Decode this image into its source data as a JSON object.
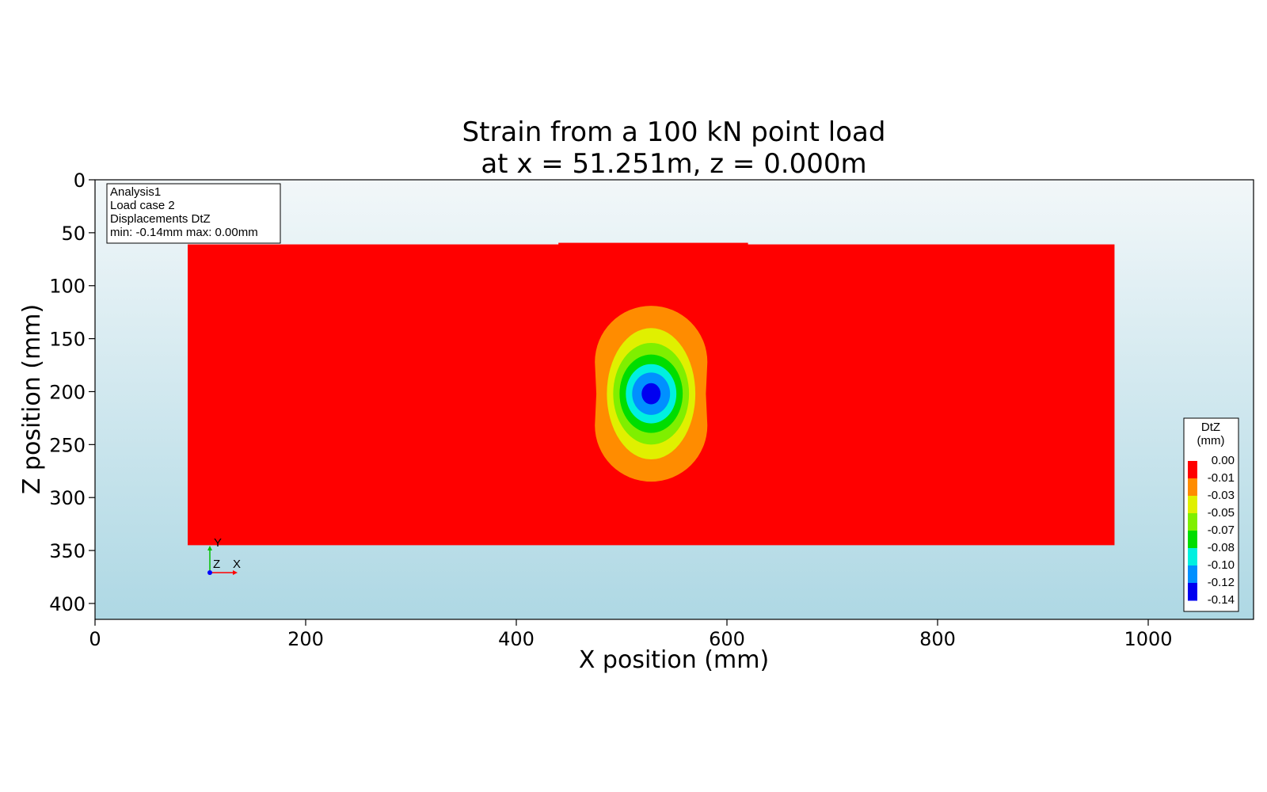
{
  "chart_data": {
    "type": "heatmap",
    "title_lines": [
      "Strain from a 100 kN point load",
      "at x = 51.251m, z = 0.000m"
    ],
    "xlabel": "X position (mm)",
    "ylabel": "Z position (mm)",
    "xlim": [
      0,
      1100
    ],
    "ylim": [
      415,
      0
    ],
    "xticks": [
      0,
      200,
      400,
      600,
      800,
      1000
    ],
    "yticks": [
      0,
      50,
      100,
      150,
      200,
      250,
      300,
      350,
      400
    ],
    "grid": false,
    "background_gradient": [
      "#f2f7f9",
      "#aed8e4"
    ],
    "slab": {
      "x_range": [
        88,
        968
      ],
      "z_range": [
        61,
        345
      ],
      "color": "#ff0000"
    },
    "load_plate": {
      "x_range": [
        440,
        620
      ],
      "z_top": 59.5
    },
    "load_center": {
      "x": 528,
      "z": 202
    },
    "contour_bands": [
      {
        "color": "#ff8c00",
        "half_width": 52,
        "half_height": 83
      },
      {
        "color": "#e0f000",
        "half_width": 42,
        "half_height": 62
      },
      {
        "color": "#7fef00",
        "half_width": 36,
        "half_height": 48
      },
      {
        "color": "#00dd00",
        "half_width": 30,
        "half_height": 37
      },
      {
        "color": "#00f0e0",
        "half_width": 24,
        "half_height": 28
      },
      {
        "color": "#0090ff",
        "half_width": 18,
        "half_height": 20
      },
      {
        "color": "#0000f0",
        "half_width": 9,
        "half_height": 10
      }
    ],
    "info_box": {
      "lines": [
        "Analysis1",
        "Load case 2",
        "Displacements DtZ",
        "min: -0.14mm max:  0.00mm"
      ]
    },
    "colorbar": {
      "title_lines": [
        "DtZ",
        "(mm)"
      ],
      "labels": [
        "0.00",
        "-0.01",
        "-0.03",
        "-0.05",
        "-0.07",
        "-0.08",
        "-0.10",
        "-0.12",
        "-0.14"
      ],
      "colors": [
        "#ff0000",
        "#ff8c00",
        "#e0f000",
        "#7fef00",
        "#00dd00",
        "#00f0e0",
        "#0090ff",
        "#0000f0"
      ]
    },
    "triad": {
      "labels": [
        "Y",
        "Z",
        "X"
      ],
      "colors": [
        "#00c000",
        "#0000ff",
        "#ff0000"
      ]
    }
  }
}
